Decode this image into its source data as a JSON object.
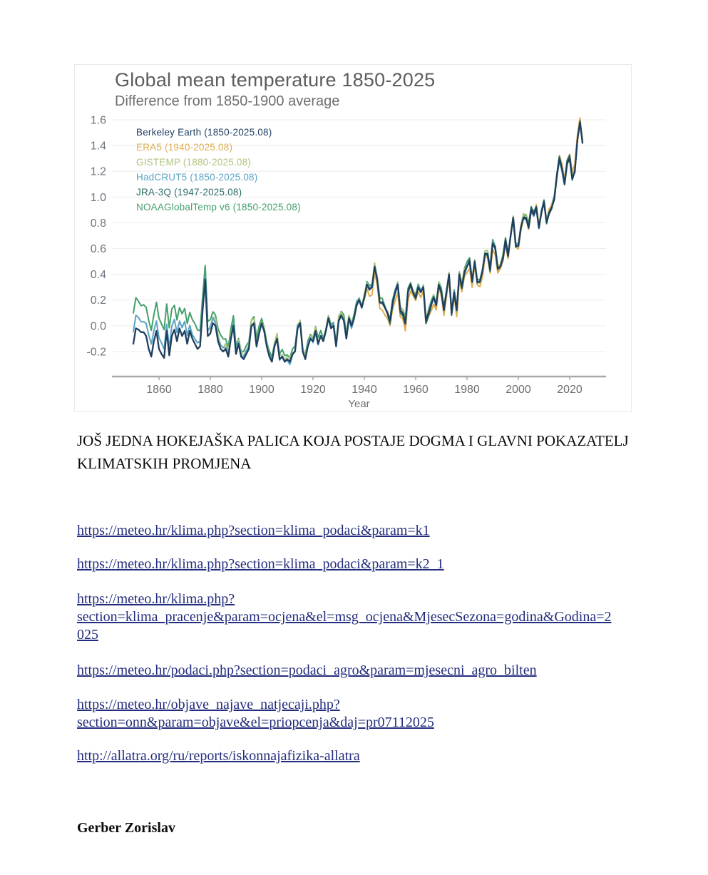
{
  "page": {
    "heading": "JOŠ JEDNA HOKEJAŠKA PALICA KOJA POSTAJE DOGMA I GLAVNI POKAZATELJ\nKLIMATSKIH PROMJENA",
    "link_color": "#232d7d",
    "links": [
      {
        "text": "https://meteo.hr/klima.php?section=klima_podaci&param=k1",
        "url": "https://meteo.hr/klima.php?section=klima_podaci&param=k1"
      },
      {
        "text": "https://meteo.hr/klima.php?section=klima_podaci&param=k2_1",
        "url": "https://meteo.hr/klima.php?section=klima_podaci&param=k2_1"
      },
      {
        "text": "https://meteo.hr/klima.php?\nsection=klima_pracenje&param=ocjena&el=msg_ocjena&MjesecSezona=godina&Godina=2\n025",
        "url": "https://meteo.hr/klima.php?section=klima_pracenje&param=ocjena&el=msg_ocjena&MjesecSezona=godina&Godina=2025"
      },
      {
        "text": "https://meteo.hr/podaci.php?section=podaci_agro&param=mjesecni_agro_bilten",
        "url": "https://meteo.hr/podaci.php?section=podaci_agro&param=mjesecni_agro_bilten"
      },
      {
        "text": "https://meteo.hr/objave_najave_natjecaji.php?\nsection=onn&param=objave&el=priopcenja&daj=pr07112025",
        "url": "https://meteo.hr/objave_najave_natjecaji.php?section=onn&param=objave&el=priopcenja&daj=pr07112025"
      },
      {
        "text": "http://allatra.org/ru/reports/iskonnajafizika-allatra",
        "url": "http://allatra.org/ru/reports/iskonnajafizika-allatra"
      }
    ],
    "signature": "Gerber Zorislav"
  },
  "chart_data": {
    "type": "line",
    "title": "Global mean temperature 1850-2025",
    "subtitle": "Difference from 1850-1900 average",
    "xlabel": "Year",
    "ylabel": "",
    "grid": true,
    "legend_position": "top-left",
    "xlim": [
      1850,
      2025
    ],
    "ylim": [
      -0.3,
      1.65
    ],
    "yticks": [
      "1.6",
      "1.4",
      "1.2",
      "1.0",
      "0.8",
      "0.6",
      "0.4",
      "0.2",
      "0.0",
      "-0.2"
    ],
    "xticks": [
      1860,
      1880,
      1900,
      1920,
      1940,
      1960,
      1980,
      2000,
      2020
    ],
    "axis_color": "#a8a8a8",
    "grid_color": "#efefef",
    "tick_label_color": "#6e7680",
    "x_start": 1850,
    "x_step": 1,
    "base_values": [
      -0.14,
      -0.02,
      -0.03,
      -0.05,
      -0.05,
      -0.08,
      -0.18,
      -0.24,
      -0.12,
      -0.04,
      -0.18,
      -0.22,
      -0.25,
      -0.04,
      -0.23,
      -0.08,
      -0.03,
      -0.12,
      -0.02,
      -0.08,
      -0.04,
      -0.14,
      -0.04,
      -0.1,
      -0.14,
      -0.18,
      -0.16,
      0.12,
      0.36,
      -0.08,
      -0.06,
      0.02,
      0.0,
      -0.12,
      -0.18,
      -0.2,
      -0.18,
      -0.24,
      -0.1,
      0.0,
      -0.22,
      -0.14,
      -0.24,
      -0.26,
      -0.22,
      -0.18,
      0.0,
      0.02,
      -0.16,
      -0.06,
      0.02,
      -0.04,
      -0.16,
      -0.24,
      -0.28,
      -0.16,
      -0.1,
      -0.26,
      -0.24,
      -0.28,
      -0.26,
      -0.28,
      -0.22,
      -0.2,
      -0.02,
      0.02,
      -0.2,
      -0.26,
      -0.16,
      -0.1,
      -0.12,
      -0.04,
      -0.14,
      -0.08,
      -0.12,
      -0.04,
      0.06,
      -0.02,
      0.0,
      -0.16,
      0.04,
      0.08,
      0.04,
      -0.1,
      0.06,
      0.0,
      0.06,
      0.16,
      0.2,
      0.14,
      0.22,
      0.32,
      0.28,
      0.3,
      0.46,
      0.36,
      0.18,
      0.18,
      0.14,
      0.1,
      0.04,
      0.18,
      0.26,
      0.32,
      0.12,
      0.1,
      0.02,
      0.26,
      0.32,
      0.26,
      0.22,
      0.3,
      0.26,
      0.3,
      0.04,
      0.1,
      0.16,
      0.22,
      0.16,
      0.32,
      0.26,
      0.12,
      0.26,
      0.4,
      0.1,
      0.26,
      0.12,
      0.4,
      0.3,
      0.42,
      0.46,
      0.5,
      0.34,
      0.5,
      0.34,
      0.34,
      0.42,
      0.56,
      0.56,
      0.44,
      0.64,
      0.6,
      0.44,
      0.46,
      0.52,
      0.66,
      0.54,
      0.7,
      0.84,
      0.62,
      0.62,
      0.76,
      0.84,
      0.84,
      0.76,
      0.9,
      0.86,
      0.92,
      0.76,
      0.88,
      0.96,
      0.8,
      0.88,
      0.92,
      0.98,
      1.16,
      1.3,
      1.22,
      1.1,
      1.26,
      1.3,
      1.14,
      1.2,
      1.44,
      1.58,
      1.42
    ],
    "series": [
      {
        "name": "Berkeley Earth (1850-2025.08)",
        "slug": "berkeley-earth",
        "color": "#1f3f5f",
        "start": 1850,
        "end": 2025,
        "z": 6,
        "jitter": false,
        "bias": [
          [
            1850,
            0
          ],
          [
            2025,
            0
          ]
        ]
      },
      {
        "name": "ERA5 (1940-2025.08)",
        "slug": "era5",
        "color": "#e0ac4e",
        "start": 1940,
        "end": 2025,
        "z": 4,
        "jitter": true,
        "bias": [
          [
            1940,
            -0.03
          ],
          [
            1950,
            -0.06
          ],
          [
            1965,
            -0.03
          ],
          [
            1985,
            -0.04
          ],
          [
            2000,
            -0.01
          ],
          [
            2015,
            0.02
          ],
          [
            2023,
            0.04
          ],
          [
            2024,
            0.05
          ],
          [
            2025,
            0.03
          ]
        ]
      },
      {
        "name": "GISTEMP (1880-2025.08)",
        "slug": "gistemp",
        "color": "#aec47e",
        "start": 1880,
        "end": 2025,
        "z": 2,
        "jitter": true,
        "bias": [
          [
            1880,
            0.04
          ],
          [
            1900,
            0.02
          ],
          [
            1950,
            0.01
          ],
          [
            2025,
            0.01
          ]
        ]
      },
      {
        "name": "HadCRUT5 (1850-2025.08)",
        "slug": "hadcrut5",
        "color": "#5ba3c4",
        "start": 1850,
        "end": 2025,
        "z": 3,
        "jitter": true,
        "bias": [
          [
            1850,
            0.1
          ],
          [
            1865,
            0.07
          ],
          [
            1880,
            0.03
          ],
          [
            1900,
            0
          ],
          [
            2025,
            0
          ]
        ]
      },
      {
        "name": "JRA-3Q (1947-2025.08)",
        "slug": "jra-3q",
        "color": "#2c6b64",
        "start": 1947,
        "end": 2025,
        "z": 5,
        "jitter": true,
        "bias": [
          [
            1947,
            -0.01
          ],
          [
            2025,
            0.01
          ]
        ]
      },
      {
        "name": "NOAAGlobalTemp v6 (1850-2025.08)",
        "slug": "noaaglobaltemp-v6",
        "color": "#43a06a",
        "start": 1850,
        "end": 2025,
        "z": 1,
        "jitter": true,
        "bias": [
          [
            1850,
            0.22
          ],
          [
            1862,
            0.22
          ],
          [
            1875,
            0.13
          ],
          [
            1888,
            0.07
          ],
          [
            1900,
            0.04
          ],
          [
            1940,
            0.02
          ],
          [
            2025,
            0.01
          ]
        ]
      }
    ]
  }
}
